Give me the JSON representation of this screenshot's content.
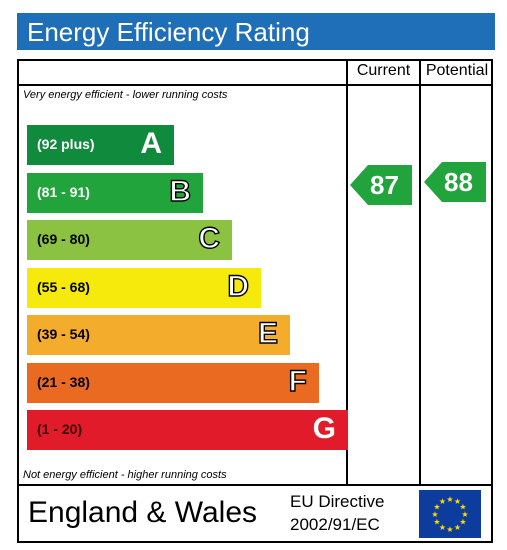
{
  "title": "Energy Efficiency Rating",
  "columns": {
    "current": "Current",
    "potential": "Potential"
  },
  "top_caption": "Very energy efficient - lower running costs",
  "bottom_caption": "Not energy efficient - higher running costs",
  "footer": {
    "region": "England & Wales",
    "directive_line1": "EU Directive",
    "directive_line2": "2002/91/EC",
    "flag_icon": "eu-flag-icon"
  },
  "colors": {
    "title_bar": "#1f6fb8",
    "A": "#108b3e",
    "B": "#22a43c",
    "C": "#8cc241",
    "D": "#f5ea0c",
    "E": "#f4ac2c",
    "F": "#ea6a22",
    "G": "#e21b2b"
  },
  "chart_data": {
    "type": "bar",
    "title": "Energy Efficiency Rating",
    "categories": [
      "A",
      "B",
      "C",
      "D",
      "E",
      "F",
      "G"
    ],
    "ranges": [
      "(92 plus)",
      "(81 - 91)",
      "(69 - 80)",
      "(55 - 68)",
      "(39 - 54)",
      "(21 - 38)",
      "(1 - 20)"
    ],
    "series": [
      {
        "name": "Current",
        "value": 87,
        "band": "B"
      },
      {
        "name": "Potential",
        "value": 88,
        "band": "B"
      }
    ]
  }
}
